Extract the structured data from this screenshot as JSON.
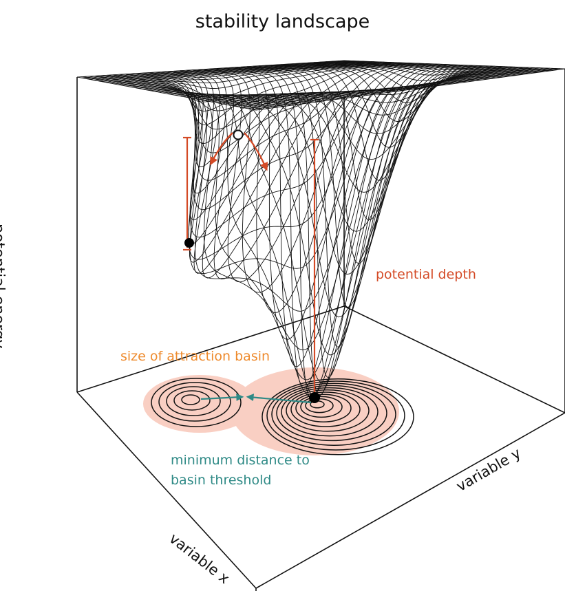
{
  "title": "stability landscape",
  "axes": {
    "z_label": "potential energy",
    "x_label": "variable x",
    "y_label": "variable y"
  },
  "annotations": {
    "potential_depth": "potential depth",
    "attraction_basin": "size of attraction basin",
    "distance_line1": "minimum distance to",
    "distance_line2": "basin threshold"
  },
  "colors": {
    "mesh": "#111111",
    "depth": "#d44a26",
    "basin": "#ee8a2c",
    "basin_fill": "#f9cfc3",
    "distance": "#2f8a86",
    "box": "#111111"
  }
}
